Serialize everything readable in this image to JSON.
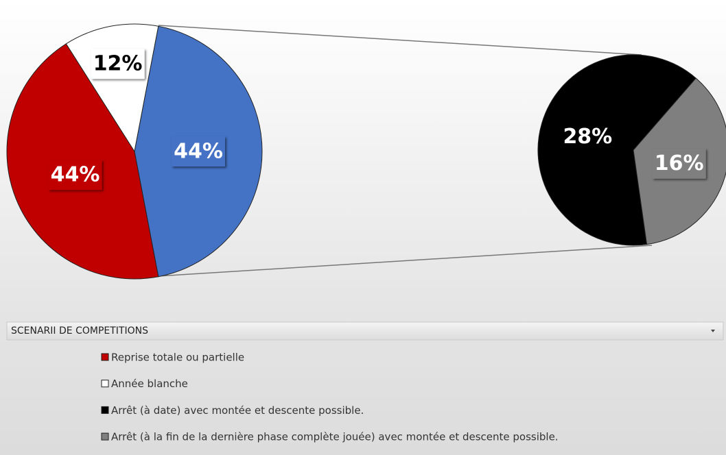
{
  "chart_data": {
    "type": "pie",
    "main": {
      "categories": [
        "Reprise totale ou partielle",
        "Année blanche",
        null
      ],
      "values": [
        44,
        12,
        44
      ],
      "value_labels": [
        "44%",
        "12%",
        "44%"
      ],
      "colors": [
        "#c00000",
        "#ffffff",
        "#4472c4"
      ]
    },
    "secondary": {
      "categories": [
        "Arrêt (à date) avec montée et descente possible.",
        "Arrêt (à la fin de la dernière phase complète jouée) avec montée et descente possible."
      ],
      "values": [
        28,
        16
      ],
      "value_labels": [
        "28%",
        "16%"
      ],
      "colors": [
        "#000000",
        "#7f7f7f"
      ]
    },
    "legend_title": "SCENARII DE COMPETITIONS"
  }
}
